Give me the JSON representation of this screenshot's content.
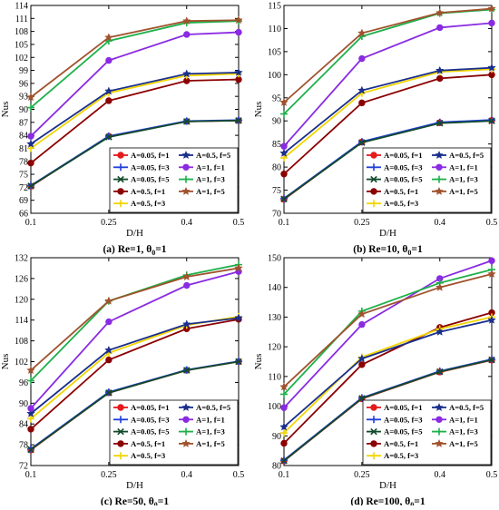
{
  "series_styles": [
    {
      "name": "A=0.05, f=1",
      "color": "#e41a1c",
      "marker": "circle"
    },
    {
      "name": "A=0.05, f=3",
      "color": "#1f3fd8",
      "marker": "plus"
    },
    {
      "name": "A=0.05, f=5",
      "color": "#124a2b",
      "marker": "cross"
    },
    {
      "name": "A=0.5, f=1",
      "color": "#8b0000",
      "marker": "circle"
    },
    {
      "name": "A=0.5, f=3",
      "color": "#f2d500",
      "marker": "plus"
    },
    {
      "name": "A=0.5, f=5",
      "color": "#1a2f8c",
      "marker": "star"
    },
    {
      "name": "A=1, f=1",
      "color": "#8a2be2",
      "marker": "circle"
    },
    {
      "name": "A=1, f=3",
      "color": "#1eb04a",
      "marker": "plus"
    },
    {
      "name": "A=1, f=5",
      "color": "#a0522d",
      "marker": "star"
    }
  ],
  "chart_data": [
    {
      "type": "line",
      "panel_label": "(a) Re=1, θ",
      "panel_sub": "0",
      "panel_suffix": "=1",
      "xlabel": "D/H",
      "ylabel": "Nus",
      "x": [
        0.1,
        0.25,
        0.4,
        0.5
      ],
      "xticks": [
        "0.1",
        "0.25",
        "0.4",
        "0.5"
      ],
      "ylim": [
        66,
        114
      ],
      "yticks": [
        66,
        69,
        72,
        75,
        78,
        81,
        84,
        87,
        90,
        93,
        96,
        99,
        102,
        105,
        108,
        111,
        114
      ],
      "series": [
        {
          "name": "A=0.05, f=1",
          "values": [
            72.2,
            83.8,
            87.2,
            87.4
          ]
        },
        {
          "name": "A=0.05, f=3",
          "values": [
            72.4,
            83.8,
            87.3,
            87.5
          ]
        },
        {
          "name": "A=0.05, f=5",
          "values": [
            72.3,
            83.6,
            87.2,
            87.4
          ]
        },
        {
          "name": "A=0.5, f=1",
          "values": [
            77.6,
            92.0,
            96.6,
            96.9
          ]
        },
        {
          "name": "A=0.5, f=3",
          "values": [
            81.0,
            93.8,
            97.8,
            98.2
          ]
        },
        {
          "name": "A=0.5, f=5",
          "values": [
            82.0,
            94.2,
            98.2,
            98.5
          ]
        },
        {
          "name": "A=1, f=1",
          "values": [
            83.8,
            101.3,
            107.3,
            107.8
          ]
        },
        {
          "name": "A=1, f=3",
          "values": [
            90.4,
            105.8,
            110.0,
            110.4
          ]
        },
        {
          "name": "A=1, f=5",
          "values": [
            92.8,
            106.6,
            110.4,
            110.6
          ]
        }
      ]
    },
    {
      "type": "line",
      "panel_label": "(b) Re=10, θ",
      "panel_sub": "0",
      "panel_suffix": "=1",
      "xlabel": "D/H",
      "ylabel": "Nus",
      "x": [
        0.1,
        0.25,
        0.4,
        0.5
      ],
      "xticks": [
        "0.1",
        "0.25",
        "0.4",
        "0.5"
      ],
      "ylim": [
        70,
        115
      ],
      "yticks": [
        70,
        75,
        80,
        85,
        90,
        95,
        100,
        105,
        110,
        115
      ],
      "series": [
        {
          "name": "A=0.05, f=1",
          "values": [
            73.0,
            85.4,
            89.6,
            90.1
          ]
        },
        {
          "name": "A=0.05, f=3",
          "values": [
            73.2,
            85.5,
            89.7,
            90.2
          ]
        },
        {
          "name": "A=0.05, f=5",
          "values": [
            73.1,
            85.3,
            89.5,
            90.0
          ]
        },
        {
          "name": "A=0.5, f=1",
          "values": [
            78.5,
            93.9,
            99.2,
            100.0
          ]
        },
        {
          "name": "A=0.5, f=3",
          "values": [
            82.0,
            96.0,
            100.6,
            101.2
          ]
        },
        {
          "name": "A=0.5, f=5",
          "values": [
            83.0,
            96.6,
            100.9,
            101.5
          ]
        },
        {
          "name": "A=1, f=1",
          "values": [
            84.5,
            103.5,
            110.2,
            111.2
          ]
        },
        {
          "name": "A=1, f=3",
          "values": [
            91.5,
            108.3,
            113.3,
            114.1
          ]
        },
        {
          "name": "A=1, f=5",
          "values": [
            94.0,
            109.0,
            113.4,
            114.3
          ]
        }
      ]
    },
    {
      "type": "line",
      "panel_label": "(c) Re=50, θ",
      "panel_sub": "0",
      "panel_suffix": "=1",
      "xlabel": "D/H",
      "ylabel": "Nus",
      "x": [
        0.1,
        0.25,
        0.4,
        0.5
      ],
      "xticks": [
        "0.1",
        "0.25",
        "0.4",
        "0.5"
      ],
      "ylim": [
        72,
        132
      ],
      "yticks": [
        72,
        78,
        84,
        90,
        96,
        102,
        108,
        114,
        120,
        126,
        132
      ],
      "series": [
        {
          "name": "A=0.05, f=1",
          "values": [
            76.5,
            93.0,
            99.5,
            102.0
          ]
        },
        {
          "name": "A=0.05, f=3",
          "values": [
            76.8,
            93.2,
            99.6,
            102.1
          ]
        },
        {
          "name": "A=0.05, f=5",
          "values": [
            76.6,
            93.0,
            99.5,
            102.0
          ]
        },
        {
          "name": "A=0.5, f=1",
          "values": [
            82.5,
            102.5,
            111.5,
            114.2
          ]
        },
        {
          "name": "A=0.5, f=3",
          "values": [
            85.5,
            104.5,
            112.5,
            115.0
          ]
        },
        {
          "name": "A=0.5, f=5",
          "values": [
            87.0,
            105.3,
            112.8,
            114.6
          ]
        },
        {
          "name": "A=1, f=1",
          "values": [
            88.5,
            113.5,
            124.0,
            128.0
          ]
        },
        {
          "name": "A=1, f=3",
          "values": [
            96.5,
            119.5,
            127.0,
            130.0
          ]
        },
        {
          "name": "A=1, f=5",
          "values": [
            99.5,
            119.5,
            126.5,
            129.0
          ]
        }
      ]
    },
    {
      "type": "line",
      "panel_label": "(d) Re=100, θ",
      "panel_sub": "0",
      "panel_suffix": "=1",
      "xlabel": "D/H",
      "ylabel": "Nus",
      "x": [
        0.1,
        0.25,
        0.4,
        0.5
      ],
      "xticks": [
        "0.1",
        "0.25",
        "0.4",
        "0.5"
      ],
      "ylim": [
        80,
        150
      ],
      "yticks": [
        80,
        90,
        100,
        110,
        120,
        130,
        140,
        150
      ],
      "series": [
        {
          "name": "A=0.05, f=1",
          "values": [
            81.5,
            102.5,
            111.5,
            115.5
          ]
        },
        {
          "name": "A=0.05, f=3",
          "values": [
            81.8,
            102.8,
            111.8,
            115.8
          ]
        },
        {
          "name": "A=0.05, f=5",
          "values": [
            81.6,
            102.6,
            111.6,
            115.6
          ]
        },
        {
          "name": "A=0.5, f=1",
          "values": [
            87.5,
            114.0,
            126.5,
            131.5
          ]
        },
        {
          "name": "A=0.5, f=3",
          "values": [
            91.0,
            116.5,
            126.0,
            130.0
          ]
        },
        {
          "name": "A=0.5, f=5",
          "values": [
            93.0,
            116.0,
            125.0,
            129.0
          ]
        },
        {
          "name": "A=1, f=1",
          "values": [
            99.5,
            127.5,
            143.0,
            149.0
          ]
        },
        {
          "name": "A=1, f=3",
          "values": [
            104.0,
            132.0,
            141.5,
            146.0
          ]
        },
        {
          "name": "A=1, f=5",
          "values": [
            106.5,
            131.0,
            140.0,
            144.5
          ]
        }
      ]
    }
  ]
}
